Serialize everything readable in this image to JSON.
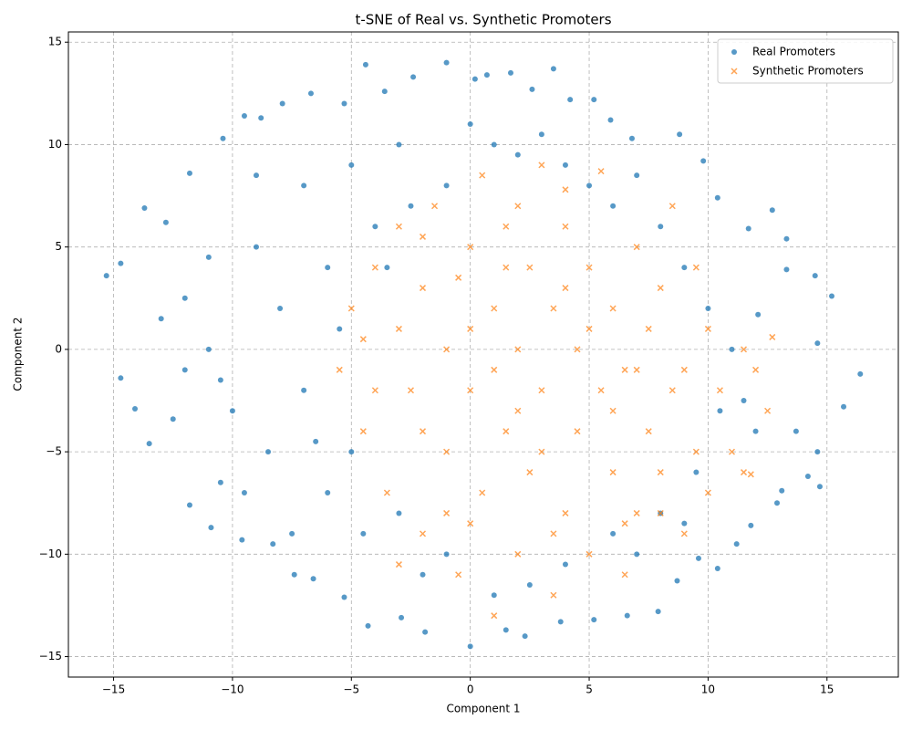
{
  "chart_data": {
    "type": "scatter",
    "title": "t-SNE of Real vs. Synthetic Promoters",
    "x_label": "Component 1",
    "y_label": "Component 2",
    "xlim": [
      -16.9,
      18.0
    ],
    "ylim": [
      -16.0,
      15.5
    ],
    "xticks": [
      {
        "value": -15,
        "label": "−15"
      },
      {
        "value": -10,
        "label": "−10"
      },
      {
        "value": -5,
        "label": "−5"
      },
      0,
      5,
      10,
      15
    ],
    "yticks": [
      {
        "value": -15,
        "label": "−15"
      },
      {
        "value": -10,
        "label": "−10"
      },
      {
        "value": -5,
        "label": "−5"
      },
      0,
      5,
      10,
      15
    ],
    "grid": true,
    "legend": "upper-right",
    "series": [
      {
        "name": "Real Promoters",
        "color": "#1f77b4",
        "marker": "circle",
        "x": [
          -15.3,
          16.4,
          0,
          -1,
          -4.4,
          15.7,
          15.2,
          -14.7,
          -14.7,
          -13.7,
          -13.5,
          -14.1,
          -12.8,
          -12.5,
          -11.8,
          -11.8,
          -10.9,
          -10.4,
          -10.5,
          -9.6,
          -9.5,
          -8.8,
          -8.3,
          -7.9,
          -7.4,
          -6.7,
          -6.6,
          -5.3,
          -5.3,
          -3.6,
          -4.3,
          -2.4,
          -2.9,
          -1.9,
          0.2,
          0.7,
          1.7,
          2.6,
          1.5,
          2.3,
          3.5,
          4.2,
          5.2,
          5.9,
          3.8,
          5.2,
          6.6,
          6.8,
          7.9,
          8.8,
          8.7,
          9.8,
          9.6,
          10.4,
          10.4,
          11.2,
          11.7,
          11.8,
          12.7,
          12.9,
          13.3,
          13.1,
          13.3,
          14.5,
          14.2,
          14.6,
          14.7,
          14.6,
          13.7,
          12.1,
          -12,
          -11,
          -10,
          -9,
          -8,
          -8.5,
          -7,
          -6,
          -7,
          -6,
          -5,
          -4.5,
          -4,
          -3,
          -2,
          -1,
          0,
          1,
          2,
          3,
          4,
          5,
          6,
          7,
          8,
          9,
          10,
          11,
          10.5,
          9.5,
          8,
          7,
          6,
          4,
          2.5,
          1,
          -1,
          -3,
          -5,
          -9,
          -11,
          -12,
          -13,
          -10.5,
          -9.5,
          -7.5,
          -3.5,
          -2.5,
          -5.5,
          -6.5,
          11.5,
          12,
          9
        ],
        "y": [
          3.6,
          -1.2,
          -14.5,
          14,
          13.9,
          -2.8,
          2.6,
          4.2,
          -1.4,
          6.9,
          -4.6,
          -2.9,
          6.2,
          -3.4,
          -7.6,
          8.6,
          -8.7,
          10.3,
          -6.5,
          -9.3,
          11.4,
          11.3,
          -9.5,
          12,
          -11,
          12.5,
          -11.2,
          12,
          -12.1,
          12.6,
          -13.5,
          13.3,
          -13.1,
          -13.8,
          13.2,
          13.4,
          13.5,
          12.7,
          -13.7,
          -14,
          13.7,
          12.2,
          12.2,
          11.2,
          -13.3,
          -13.2,
          -13,
          10.3,
          -12.8,
          10.5,
          -11.3,
          9.2,
          -10.2,
          7.4,
          -10.7,
          -9.5,
          5.9,
          -8.6,
          6.8,
          -7.5,
          5.4,
          -6.9,
          3.9,
          3.6,
          -6.2,
          -5,
          -6.7,
          0.3,
          -4,
          1.7,
          2.5,
          0,
          -3,
          5,
          2,
          -5,
          8,
          -7,
          -2,
          4,
          9,
          -9,
          6,
          10,
          -11,
          8,
          11,
          10,
          9.5,
          10.5,
          9,
          8,
          7,
          8.5,
          6,
          4,
          2,
          0,
          -3,
          -6,
          -8,
          -10,
          -9,
          -10.5,
          -11.5,
          -12,
          -10,
          -8,
          -5,
          8.5,
          4.5,
          -1,
          1.5,
          -1.5,
          -7,
          -9,
          4,
          7,
          1,
          -4.5,
          -2.5,
          -4,
          -8.5
        ]
      },
      {
        "name": "Synthetic Promoters",
        "color": "#ff7f0e",
        "marker": "x",
        "x": [
          -5.5,
          -5,
          -4.5,
          -4,
          -3.5,
          -3,
          -3,
          -2.5,
          -2,
          -2,
          -1.5,
          -1,
          -1,
          -0.5,
          0,
          0,
          0.5,
          0.5,
          1,
          1,
          1.5,
          1.5,
          2,
          2,
          2.5,
          2.5,
          3,
          3,
          3.5,
          3.5,
          4,
          4,
          4.5,
          4.5,
          5,
          5,
          5.5,
          5.5,
          6,
          6,
          6.5,
          6.5,
          7,
          7,
          7.5,
          7.5,
          8,
          8,
          8.5,
          8.5,
          9,
          9,
          9.5,
          9.5,
          10,
          10,
          10.5,
          11,
          11.5,
          11.5,
          12,
          12.5,
          12.7,
          11.8,
          -1,
          -2,
          0,
          1,
          2,
          3,
          4,
          5,
          6,
          7,
          -4,
          -3,
          0,
          2,
          4,
          -0.5,
          1.5,
          3.5,
          6.5,
          8,
          -2,
          -4.5
        ],
        "y": [
          -1,
          2,
          -4,
          4,
          -7,
          1,
          6,
          -2,
          -9,
          3,
          7,
          -5,
          0,
          -11,
          5,
          -2,
          8.5,
          -7,
          2,
          -13,
          -4,
          6,
          -10,
          0,
          4,
          -6,
          9,
          -2,
          -12,
          2,
          -8,
          6,
          -4,
          0,
          -10,
          4,
          8.7,
          -2,
          -6,
          2,
          -11,
          -1,
          5,
          -8,
          -4,
          1,
          3,
          -6,
          -2,
          7,
          -1,
          -9,
          4,
          -5,
          1,
          -7,
          -2,
          -5,
          0,
          -6,
          -1,
          -3,
          0.6,
          -6.1,
          -8,
          -4,
          1,
          -1,
          -3,
          -5,
          3,
          1,
          -3,
          -1,
          -2,
          -10.5,
          -8.5,
          7,
          7.8,
          3.5,
          4,
          -9,
          -8.5,
          -8,
          5.5,
          0.5
        ]
      }
    ]
  }
}
